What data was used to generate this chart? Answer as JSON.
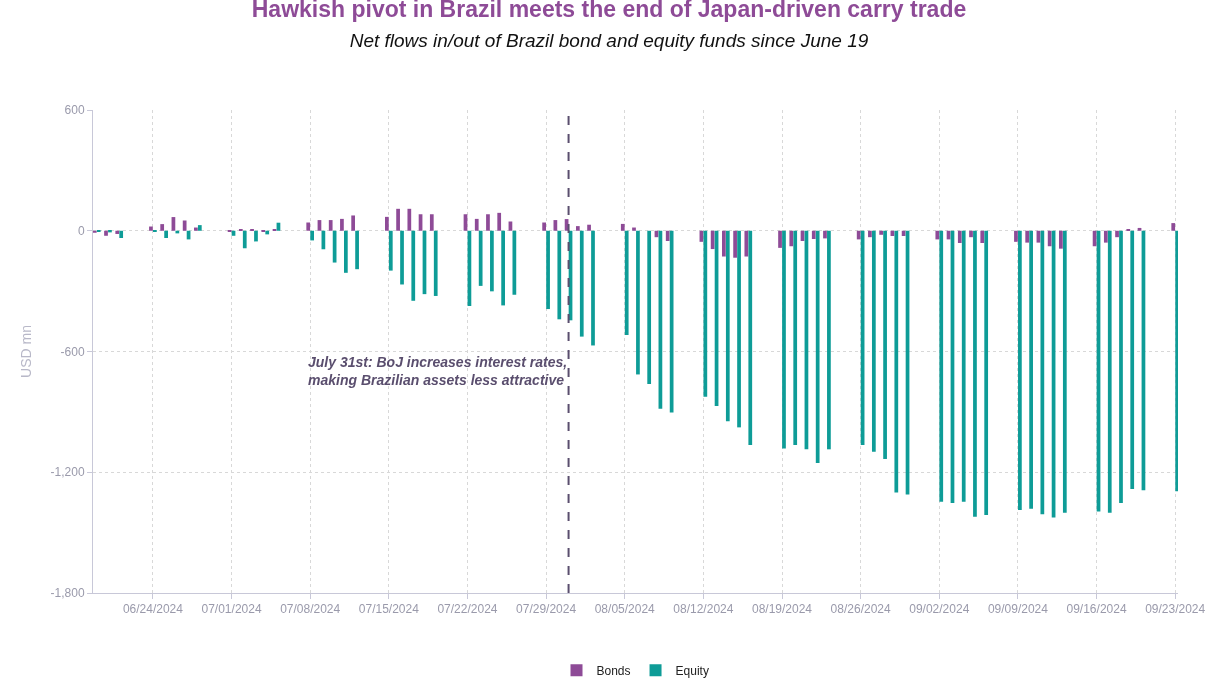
{
  "chart_data": {
    "type": "bar",
    "title": "Hawkish pivot in Brazil meets the end of Japan-driven carry trade",
    "subtitle": "Net flows in/out of Brazil bond and equity funds since June 19",
    "ylabel": "USD mn",
    "x": [
      "2024-06-19",
      "2024-06-20",
      "2024-06-21",
      "2024-06-24",
      "2024-06-25",
      "2024-06-26",
      "2024-06-27",
      "2024-06-28",
      "2024-07-01",
      "2024-07-02",
      "2024-07-03",
      "2024-07-04",
      "2024-07-05",
      "2024-07-08",
      "2024-07-09",
      "2024-07-10",
      "2024-07-11",
      "2024-07-12",
      "2024-07-15",
      "2024-07-16",
      "2024-07-17",
      "2024-07-18",
      "2024-07-19",
      "2024-07-22",
      "2024-07-23",
      "2024-07-24",
      "2024-07-25",
      "2024-07-26",
      "2024-07-29",
      "2024-07-30",
      "2024-07-31",
      "2024-08-01",
      "2024-08-02",
      "2024-08-05",
      "2024-08-06",
      "2024-08-07",
      "2024-08-08",
      "2024-08-09",
      "2024-08-12",
      "2024-08-13",
      "2024-08-14",
      "2024-08-15",
      "2024-08-16",
      "2024-08-19",
      "2024-08-20",
      "2024-08-21",
      "2024-08-22",
      "2024-08-23",
      "2024-08-26",
      "2024-08-27",
      "2024-08-28",
      "2024-08-29",
      "2024-08-30",
      "2024-09-02",
      "2024-09-03",
      "2024-09-04",
      "2024-09-05",
      "2024-09-06",
      "2024-09-09",
      "2024-09-10",
      "2024-09-11",
      "2024-09-12",
      "2024-09-13",
      "2024-09-16",
      "2024-09-17",
      "2024-09-18",
      "2024-09-19",
      "2024-09-20",
      "2024-09-23"
    ],
    "series": [
      {
        "name": "Bonds",
        "color": "#8e4b97",
        "values": [
          -10,
          -25,
          -16,
          21,
          33,
          68,
          51,
          16,
          -3,
          5,
          5,
          -3,
          8,
          41,
          53,
          53,
          59,
          76,
          69,
          109,
          109,
          82,
          82,
          82,
          59,
          82,
          89,
          46,
          41,
          53,
          58,
          23,
          30,
          34,
          16,
          0,
          -32,
          -51,
          -55,
          -91,
          -128,
          -134,
          -128,
          -85,
          -77,
          -51,
          -41,
          -38,
          -43,
          -32,
          -20,
          -26,
          -26,
          -43,
          -43,
          -61,
          -32,
          -61,
          -55,
          -59,
          -59,
          -77,
          -89,
          -77,
          -59,
          -32,
          4,
          14,
          38
        ]
      },
      {
        "name": "Equity",
        "color": "#0e9c97",
        "values": [
          -5,
          -8,
          -36,
          -5,
          -36,
          -13,
          -43,
          28,
          -25,
          -87,
          -53,
          -18,
          40,
          -48,
          -92,
          -158,
          -209,
          -191,
          -198,
          -267,
          -348,
          -315,
          -324,
          -374,
          -274,
          -301,
          -371,
          -318,
          -389,
          -440,
          -445,
          -526,
          -570,
          -518,
          -714,
          -761,
          -885,
          -903,
          -825,
          -871,
          -947,
          -977,
          -1064,
          -1082,
          -1064,
          -1086,
          -1154,
          -1086,
          -1064,
          -1098,
          -1134,
          -1301,
          -1311,
          -1347,
          -1353,
          -1347,
          -1421,
          -1413,
          -1387,
          -1381,
          -1409,
          -1425,
          -1401,
          -1395,
          -1401,
          -1353,
          -1283,
          -1289,
          -1295
        ]
      }
    ],
    "xlim": [
      "2024-06-18T16:00",
      "2024-09-23T06:00"
    ],
    "xticks": [
      {
        "value": "2024-06-24",
        "label": "06/24/2024"
      },
      {
        "value": "2024-07-01",
        "label": "07/01/2024"
      },
      {
        "value": "2024-07-08",
        "label": "07/08/2024"
      },
      {
        "value": "2024-07-15",
        "label": "07/15/2024"
      },
      {
        "value": "2024-07-22",
        "label": "07/22/2024"
      },
      {
        "value": "2024-07-29",
        "label": "07/29/2024"
      },
      {
        "value": "2024-08-05",
        "label": "08/05/2024"
      },
      {
        "value": "2024-08-12",
        "label": "08/12/2024"
      },
      {
        "value": "2024-08-19",
        "label": "08/19/2024"
      },
      {
        "value": "2024-08-26",
        "label": "08/26/2024"
      },
      {
        "value": "2024-09-02",
        "label": "09/02/2024"
      },
      {
        "value": "2024-09-09",
        "label": "09/09/2024"
      },
      {
        "value": "2024-09-16",
        "label": "09/16/2024"
      },
      {
        "value": "2024-09-23",
        "label": "09/23/2024"
      }
    ],
    "ylim": [
      -1800,
      600
    ],
    "yticks": [
      {
        "value": -1800,
        "label": "-1,800"
      },
      {
        "value": -1200,
        "label": "-1,200"
      },
      -600,
      0,
      600
    ],
    "ref_lines": [
      {
        "axis": "x",
        "value": "2024-07-31",
        "label": "July 31st: BoJ increases interest rates,\nmaking Brazilian assets less attractive",
        "color": "#5a4e6e",
        "line_style": "dashed"
      }
    ],
    "grid": true,
    "legend": "bottom"
  }
}
